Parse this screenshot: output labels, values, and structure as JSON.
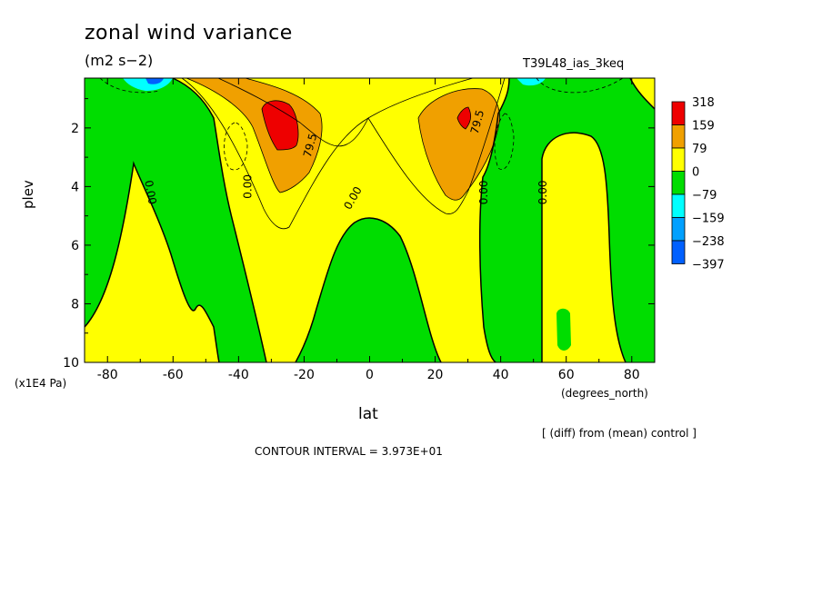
{
  "title": "zonal wind variance",
  "units": "(m2 s−2)",
  "run_id": "T39L48_ias_3keq",
  "y_axis_label": "plev",
  "y_axis_units": "(x1E4 Pa)",
  "x_axis_label": "lat",
  "x_axis_units": "(degrees_north)",
  "note": "[ (diff) from (mean) control ]",
  "contour_interval": "CONTOUR INTERVAL = 3.973E+01",
  "colors": {
    "red": "#ee0000",
    "orange": "#f0a000",
    "yellow": "#ffff00",
    "green": "#00dd00",
    "cyan": "#00ffff",
    "sky": "#00a0ff",
    "blue": "#0060ff"
  },
  "chart_data": {
    "type": "contour",
    "xlim": [
      -87,
      87
    ],
    "ylim": [
      10,
      0.3
    ],
    "x_ticks": [
      -80,
      -60,
      -40,
      -20,
      0,
      20,
      40,
      60,
      80
    ],
    "y_ticks": [
      2,
      4,
      6,
      8,
      10
    ],
    "colorbar": {
      "labels": [
        "318",
        "159",
        "79",
        "0",
        "−79",
        "−159",
        "−238",
        "−397"
      ],
      "colors": [
        "#ee0000",
        "#f0a000",
        "#ffff00",
        "#00dd00",
        "#00ffff",
        "#00a0ff",
        "#0060ff"
      ]
    },
    "contour_labels": [
      {
        "text": "0.00",
        "lat": -67,
        "plev": 4.2,
        "angle": 80
      },
      {
        "text": "0.00",
        "lat": -37,
        "plev": 4.0,
        "angle": -90
      },
      {
        "text": "79.5",
        "lat": -18,
        "plev": 2.6,
        "angle": -75
      },
      {
        "text": "0.00",
        "lat": -5,
        "plev": 4.4,
        "angle": -60
      },
      {
        "text": "79.5",
        "lat": 33,
        "plev": 1.8,
        "angle": -75
      },
      {
        "text": "0.00",
        "lat": 35,
        "plev": 4.2,
        "angle": -90
      },
      {
        "text": "0.00",
        "lat": 53,
        "plev": 4.2,
        "angle": -90
      }
    ]
  }
}
